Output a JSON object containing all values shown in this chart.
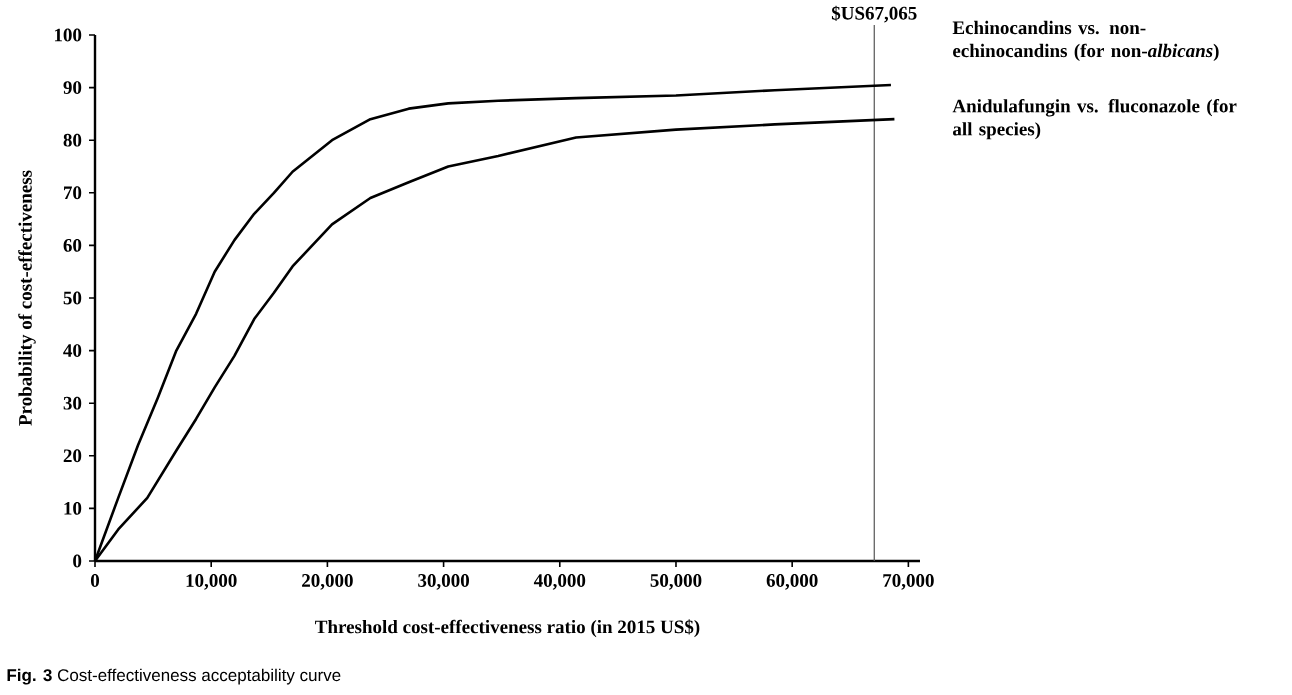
{
  "chart_data": {
    "type": "line",
    "xlabel": "Threshold cost-effectiveness ratio (in 2015 US$)",
    "ylabel": "Probability of cost-effectiveness",
    "annotations": [
      "**Fig. 3** Cost-effectiveness acceptability curve"
    ],
    "series": [
      {
        "name": "Echinocandins vs. non-echinocandins (for non-*albicans*)",
        "color": "#000000",
        "x": [
          0,
          2000,
          3700,
          5400,
          7000,
          8700,
          10300,
          12000,
          13700,
          15400,
          17000,
          18700,
          20400,
          23700,
          27000,
          30400,
          34700,
          41400,
          50000,
          58500,
          68500
        ],
        "values": [
          0,
          12,
          22,
          31,
          40,
          47,
          55,
          61,
          66,
          70,
          74,
          77,
          80,
          84,
          86,
          87,
          87.5,
          88,
          88.5,
          89.5,
          90.5
        ]
      },
      {
        "name": "Anidulafungin vs. fluconazole (for all species)",
        "color": "#000000",
        "x": [
          0,
          2000,
          4500,
          7000,
          8700,
          10300,
          12000,
          13700,
          15400,
          17000,
          18700,
          20400,
          23700,
          27000,
          30400,
          34700,
          41400,
          50000,
          58500,
          68800
        ],
        "values": [
          0,
          6,
          12,
          21,
          27,
          33,
          39,
          46,
          51,
          56,
          60,
          64,
          69,
          72,
          75,
          77,
          80.5,
          82,
          83,
          84
        ]
      }
    ],
    "xlim": [
      0,
      71000
    ],
    "ylim": [
      0,
      100
    ],
    "xticks": [
      0,
      {
        "value": 10000,
        "label": "10,000"
      },
      {
        "value": 20000,
        "label": "20,000"
      },
      {
        "value": 30000,
        "label": "30,000"
      },
      {
        "value": 40000,
        "label": "40,000"
      },
      {
        "value": 50000,
        "label": "50,000"
      },
      {
        "value": 60000,
        "label": "60,000"
      },
      {
        "value": 70000,
        "label": "70,000"
      }
    ],
    "yticks": [
      0,
      10,
      20,
      30,
      40,
      50,
      60,
      70,
      80,
      90,
      100
    ],
    "ref_lines": [
      {
        "axis": "x",
        "value": 67065,
        "label": "$US67,065",
        "color": "#555555"
      }
    ],
    "line_style": "solid"
  }
}
